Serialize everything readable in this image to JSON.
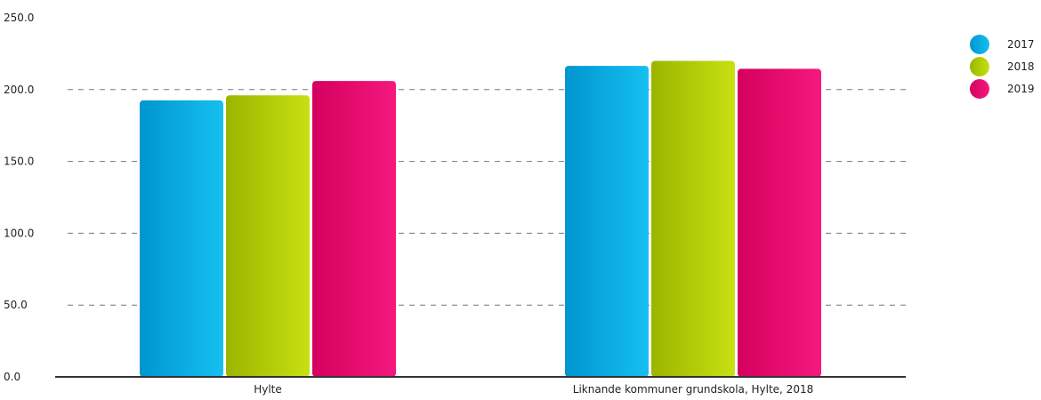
{
  "chart_data": {
    "type": "bar",
    "title": "",
    "xlabel": "",
    "ylabel": "",
    "categories": [
      "Hylte",
      "Liknande kommuner grundskola, Hylte, 2018"
    ],
    "series": [
      {
        "name": "2017",
        "values": [
          192.5,
          216.5
        ],
        "color_top": "#0095d0",
        "color_bottom": "#16c0f0"
      },
      {
        "name": "2018",
        "values": [
          196.0,
          220.0
        ],
        "color_top": "#9bb500",
        "color_bottom": "#c8e012"
      },
      {
        "name": "2019",
        "values": [
          206.0,
          214.5
        ],
        "color_top": "#d4005e",
        "color_bottom": "#f5197e"
      }
    ],
    "ylim": [
      0,
      250
    ],
    "yticks": [
      0,
      50,
      100,
      150,
      200,
      250
    ],
    "ytick_labels": [
      "0.0",
      "50.0",
      "100.0",
      "150.0",
      "200.0",
      "250.0"
    ],
    "grid": true,
    "legend_position": "top-right"
  }
}
